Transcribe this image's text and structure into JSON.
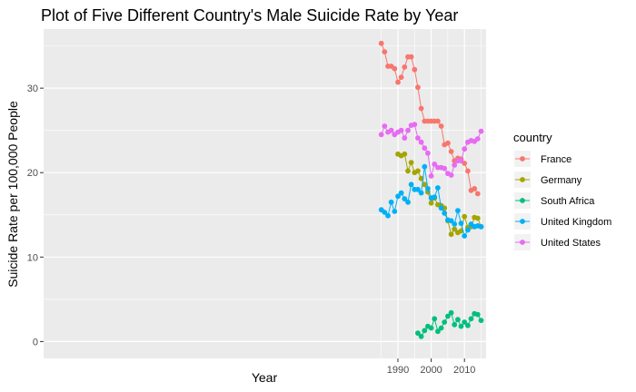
{
  "chart_data": {
    "type": "line",
    "title": "Plot of Five Different Country's Male Suicide Rate by Year",
    "xlabel": "Year",
    "ylabel": "Suicide Rate per 100,000 People",
    "xlim": [
      1883.5,
      2016.5
    ],
    "ylim": [
      -2,
      37
    ],
    "x_ticks": [
      1990,
      2000,
      2010
    ],
    "x_minor_ticks": [
      1985,
      1995,
      2005,
      2015
    ],
    "y_ticks": [
      0,
      10,
      20,
      30
    ],
    "y_minor_ticks": [
      5,
      15,
      25,
      35
    ],
    "grid": true,
    "background": "#ebebeb",
    "legend": {
      "title": "country",
      "position": "right"
    },
    "series": [
      {
        "name": "France",
        "color": "#F8766D",
        "x": [
          1985,
          1986,
          1987,
          1988,
          1989,
          1990,
          1991,
          1992,
          1993,
          1994,
          1995,
          1996,
          1997,
          1998,
          1999,
          2000,
          2001,
          2002,
          2003,
          2004,
          2005,
          2006,
          2007,
          2008,
          2009,
          2010,
          2011,
          2012,
          2013,
          2014
        ],
        "y": [
          35.3,
          34.3,
          32.6,
          32.6,
          32.3,
          30.7,
          31.3,
          32.5,
          33.7,
          33.7,
          32.2,
          30.1,
          27.6,
          26.1,
          26.1,
          26.1,
          26.1,
          26.1,
          25.5,
          23.3,
          23.5,
          22.5,
          21.4,
          21.7,
          21.6,
          21.1,
          20.2,
          17.9,
          18.1,
          17.5
        ]
      },
      {
        "name": "Germany",
        "color": "#A3A500",
        "x": [
          1990,
          1991,
          1992,
          1993,
          1994,
          1995,
          1996,
          1997,
          1998,
          1999,
          2000,
          2001,
          2002,
          2003,
          2004,
          2005,
          2006,
          2007,
          2008,
          2009,
          2010,
          2011,
          2012,
          2013,
          2014,
          2015
        ],
        "y": [
          22.2,
          22.0,
          22.2,
          20.2,
          21.2,
          20.0,
          20.2,
          19.3,
          18.6,
          17.7,
          16.4,
          17.0,
          16.2,
          16.1,
          15.8,
          14.3,
          12.7,
          13.3,
          12.9,
          13.1,
          14.8,
          13.5,
          13.6,
          14.7,
          14.6,
          13.6
        ]
      },
      {
        "name": "South Africa",
        "color": "#00BF7D",
        "x": [
          1996,
          1997,
          1998,
          1999,
          2000,
          2001,
          2002,
          2003,
          2004,
          2005,
          2006,
          2007,
          2008,
          2009,
          2010,
          2011,
          2012,
          2013,
          2014,
          2015
        ],
        "y": [
          1.0,
          0.6,
          1.3,
          1.8,
          1.6,
          2.7,
          1.2,
          1.6,
          2.3,
          3.0,
          3.4,
          2.0,
          2.6,
          1.8,
          2.3,
          1.9,
          2.7,
          3.3,
          3.2,
          2.5
        ]
      },
      {
        "name": "United Kingdom",
        "color": "#00B0F6",
        "x": [
          1985,
          1986,
          1987,
          1988,
          1989,
          1990,
          1991,
          1992,
          1993,
          1994,
          1995,
          1996,
          1997,
          1998,
          1999,
          2000,
          2001,
          2002,
          2003,
          2004,
          2005,
          2006,
          2007,
          2008,
          2009,
          2010,
          2011,
          2012,
          2013,
          2014,
          2015
        ],
        "y": [
          15.6,
          15.3,
          14.9,
          16.5,
          15.4,
          17.2,
          17.6,
          16.9,
          16.5,
          18.6,
          18.0,
          18.0,
          17.6,
          20.7,
          18.1,
          17.0,
          17.1,
          18.2,
          15.8,
          15.2,
          14.4,
          14.3,
          13.9,
          15.5,
          14.0,
          12.5,
          13.2,
          13.9,
          13.6,
          13.7,
          13.6
        ]
      },
      {
        "name": "United States",
        "color": "#E76BF3",
        "x": [
          1985,
          1986,
          1987,
          1988,
          1989,
          1990,
          1991,
          1992,
          1993,
          1994,
          1995,
          1996,
          1997,
          1998,
          1999,
          2000,
          2001,
          2002,
          2003,
          2004,
          2005,
          2006,
          2007,
          2008,
          2009,
          2010,
          2011,
          2012,
          2013,
          2014,
          2015
        ],
        "y": [
          24.5,
          25.5,
          24.8,
          25.0,
          24.5,
          24.8,
          25.0,
          24.1,
          25.0,
          25.6,
          25.7,
          24.1,
          23.6,
          22.9,
          22.3,
          19.6,
          21.0,
          20.6,
          20.6,
          20.5,
          19.9,
          19.7,
          20.9,
          21.4,
          21.4,
          22.8,
          23.6,
          23.8,
          23.7,
          24.0,
          24.9
        ]
      }
    ]
  }
}
